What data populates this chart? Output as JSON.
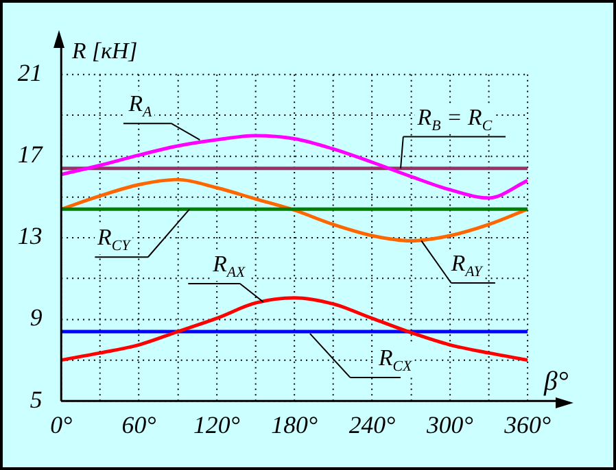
{
  "chart_data": {
    "type": "line",
    "xlabel": "β°",
    "ylabel": "R [кН]",
    "x": [
      0,
      30,
      60,
      90,
      120,
      150,
      180,
      210,
      240,
      270,
      300,
      330,
      360
    ],
    "xlim": [
      0,
      360
    ],
    "xticks": [
      {
        "value": 0,
        "label": "0°"
      },
      {
        "value": 30,
        "label": null
      },
      {
        "value": 60,
        "label": "60°"
      },
      {
        "value": 90,
        "label": null
      },
      {
        "value": 120,
        "label": "120°"
      },
      {
        "value": 150,
        "label": null
      },
      {
        "value": 180,
        "label": "180°"
      },
      {
        "value": 210,
        "label": null
      },
      {
        "value": 240,
        "label": "240°"
      },
      {
        "value": 270,
        "label": null
      },
      {
        "value": 300,
        "label": "300°"
      },
      {
        "value": 330,
        "label": null
      },
      {
        "value": 360,
        "label": "360°"
      }
    ],
    "ylim": [
      5,
      21
    ],
    "yticks": [
      5,
      {
        "value": 7,
        "label": null
      },
      9,
      {
        "value": 11,
        "label": null
      },
      13,
      {
        "value": 15,
        "label": null
      },
      17,
      {
        "value": 19,
        "label": null
      },
      21
    ],
    "series": [
      {
        "name": "R$_{A}$",
        "color": "#ff00ff",
        "values": [
          16.1,
          16.55,
          17.05,
          17.5,
          17.8,
          18.0,
          17.85,
          17.35,
          16.7,
          16.0,
          15.35,
          14.95,
          15.8
        ]
      },
      {
        "name": "R$_{B}$ = R$_{C}$",
        "color": "#993366",
        "values": [
          16.4,
          16.4,
          16.4,
          16.4,
          16.4,
          16.4,
          16.4,
          16.4,
          16.4,
          16.4,
          16.4,
          16.4,
          16.4
        ]
      },
      {
        "name": "R$_{CY}$",
        "color": "#008000",
        "values": [
          14.4,
          14.4,
          14.4,
          14.4,
          14.4,
          14.4,
          14.4,
          14.4,
          14.4,
          14.4,
          14.4,
          14.4,
          14.4
        ]
      },
      {
        "name": "R$_{AY}$",
        "color": "#ff6600",
        "values": [
          14.4,
          15.05,
          15.6,
          15.85,
          15.45,
          14.9,
          14.35,
          13.65,
          13.1,
          12.85,
          13.1,
          13.65,
          14.4
        ]
      },
      {
        "name": "R$_{AX}$",
        "color": "#ff0000",
        "values": [
          7.0,
          7.35,
          7.75,
          8.4,
          9.05,
          9.8,
          10.05,
          9.75,
          9.05,
          8.35,
          7.75,
          7.35,
          7.0
        ]
      },
      {
        "name": "R$_{CX}$",
        "color": "#0000ff",
        "values": [
          8.4,
          8.4,
          8.4,
          8.4,
          8.4,
          8.4,
          8.4,
          8.4,
          8.4,
          8.4,
          8.4,
          8.4,
          8.4
        ]
      }
    ],
    "grid": true,
    "legend": false,
    "marker": "none",
    "line_style": "solid"
  }
}
